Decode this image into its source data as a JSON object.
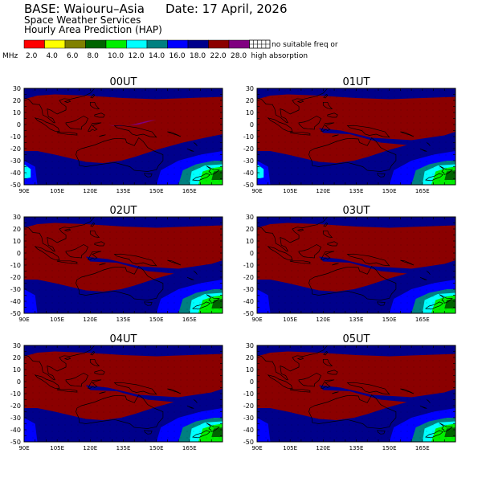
{
  "header": {
    "base": "BASE: Waiouru–Asia",
    "date": "Date:  17 April, 2026",
    "line2": "Space Weather Services",
    "line3": "Hourly Area Prediction (HAP)"
  },
  "legend": {
    "unit": "MHz",
    "labels": [
      "2.0",
      "4.0",
      "6.0",
      "8.0",
      "10.0",
      "12.0",
      "14.0",
      "16.0",
      "18.0",
      "22.0",
      "28.0"
    ],
    "colors": [
      "#ff0000",
      "#ffff00",
      "#808000",
      "#006400",
      "#00ee00",
      "#00ffff",
      "#008080",
      "#0000ff",
      "#00008b",
      "#8b0000",
      "#800080"
    ],
    "nodata_label_1": "no suitable freq or",
    "nodata_label_2": "high absorption"
  },
  "panels": [
    {
      "title": "00UT"
    },
    {
      "title": "01UT"
    },
    {
      "title": "02UT"
    },
    {
      "title": "03UT"
    },
    {
      "title": "04UT"
    },
    {
      "title": "05UT"
    }
  ],
  "axes": {
    "lat_ticks": [
      "30",
      "20",
      "10",
      "0",
      "-10",
      "-20",
      "-30",
      "-40",
      "-50"
    ],
    "lon_ticks": [
      "90E",
      "105E",
      "120E",
      "135E",
      "150E",
      "165E"
    ]
  }
}
